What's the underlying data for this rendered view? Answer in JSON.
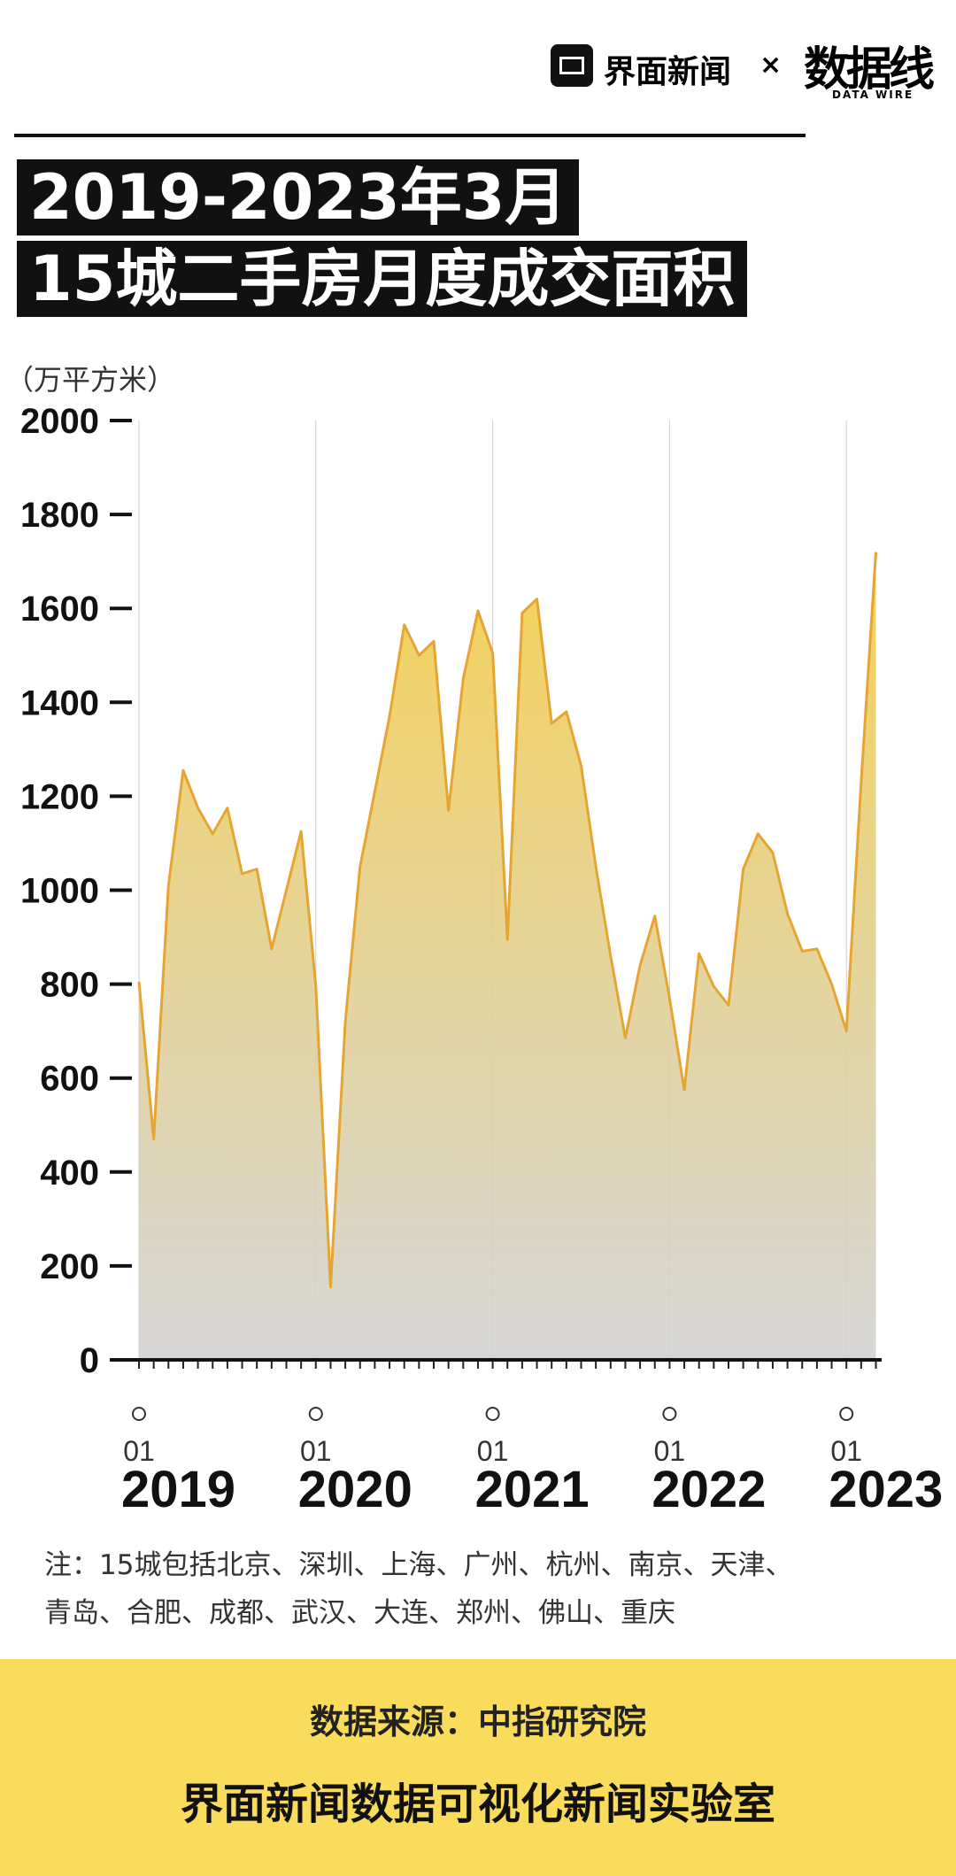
{
  "header": {
    "brand": "界面新闻",
    "separator": "×",
    "partner": "数据线",
    "partner_sub": "DATA WIRE"
  },
  "chart_data": {
    "type": "area",
    "title": [
      "2019-2023年3月",
      "15城二手房月度成交面积"
    ],
    "y_label": "（万平方米）",
    "categories": [
      "01",
      null,
      null,
      null,
      null,
      null,
      null,
      null,
      null,
      null,
      null,
      null,
      "01",
      null,
      null,
      null,
      null,
      null,
      null,
      null,
      null,
      null,
      null,
      null,
      "01",
      null,
      null,
      null,
      null,
      null,
      null,
      null,
      null,
      null,
      null,
      null,
      "01",
      null,
      null,
      null,
      null,
      null,
      null,
      null,
      null,
      null,
      null,
      null,
      "01",
      null,
      null
    ],
    "years": [
      "2019",
      "2020",
      "2021",
      "2022",
      "2023"
    ],
    "values": [
      805,
      470,
      1010,
      1255,
      1175,
      1120,
      1175,
      1035,
      1045,
      875,
      1000,
      1125,
      795,
      155,
      720,
      1050,
      1210,
      1370,
      1565,
      1500,
      1530,
      1170,
      1450,
      1595,
      1505,
      895,
      1590,
      1620,
      1355,
      1380,
      1265,
      1050,
      860,
      685,
      840,
      945,
      770,
      575,
      865,
      795,
      755,
      1045,
      1120,
      1080,
      950,
      870,
      875,
      800,
      700,
      1230,
      1720
    ],
    "color": "#e6a532",
    "ylim": [
      0,
      2000
    ],
    "yticks": [
      0,
      200,
      400,
      600,
      800,
      1000,
      1200,
      1400,
      1600,
      1800,
      2000
    ],
    "grid": true
  },
  "note": [
    "注：15城包括北京、深圳、上海、广州、杭州、南京、天津、",
    "青岛、合肥、成都、武汉、大连、郑州、佛山、重庆"
  ],
  "footer": {
    "source": "数据来源：中指研究院",
    "credit": "界面新闻数据可视化新闻实验室"
  }
}
